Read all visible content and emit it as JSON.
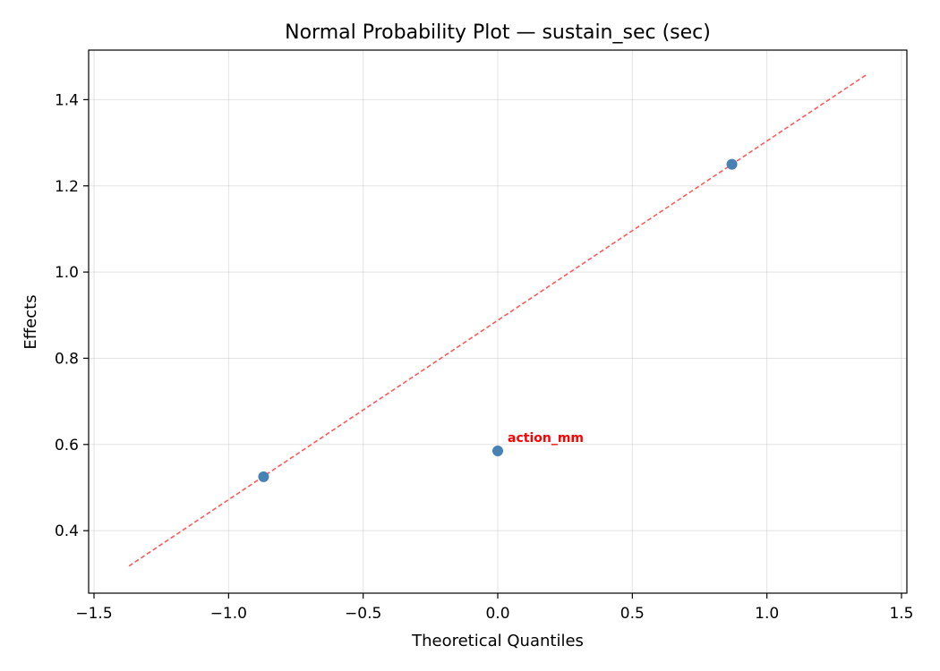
{
  "chart_data": {
    "type": "scatter",
    "title": "Normal Probability Plot — sustain_sec (sec)",
    "xlabel": "Theoretical Quantiles",
    "ylabel": "Effects",
    "xlim": [
      -1.52,
      1.52
    ],
    "ylim": [
      0.255,
      1.515
    ],
    "xticks": [
      -1.5,
      -1.0,
      -0.5,
      0.0,
      0.5,
      1.0,
      1.5
    ],
    "xtick_labels": [
      "−1.5",
      "−1.0",
      "−0.5",
      "0.0",
      "0.5",
      "1.0",
      "1.5"
    ],
    "yticks": [
      0.4,
      0.6,
      0.8,
      1.0,
      1.2,
      1.4
    ],
    "ytick_labels": [
      "0.4",
      "0.6",
      "0.8",
      "1.0",
      "1.2",
      "1.4"
    ],
    "grid": true,
    "points": [
      {
        "x": -0.87,
        "y": 0.525
      },
      {
        "x": 0.0,
        "y": 0.585,
        "label": "action_mm"
      },
      {
        "x": 0.87,
        "y": 1.25
      }
    ],
    "reference_line": {
      "x": [
        -1.37,
        1.37
      ],
      "y": [
        0.318,
        1.458
      ],
      "style": "dashed"
    },
    "colors": {
      "points": "#4682b4",
      "reference_line": "#ff5a5a",
      "annotation": "#ff0000"
    }
  }
}
